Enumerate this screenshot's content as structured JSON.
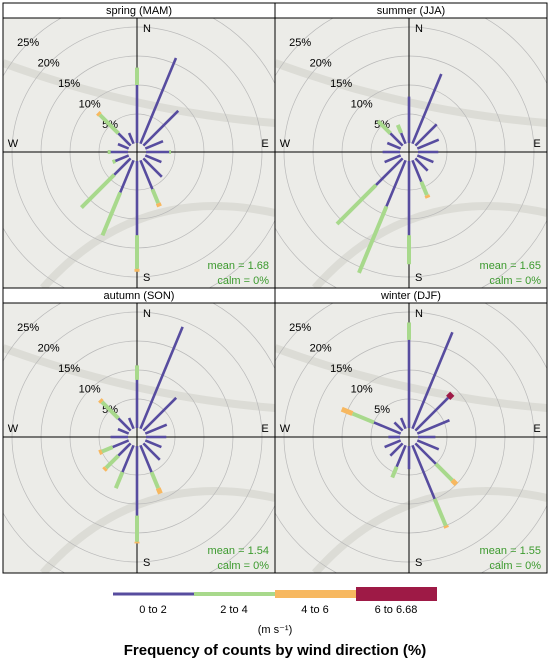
{
  "chart_data": [
    {
      "type": "windrose",
      "title": "spring (MAM)",
      "compass_labels": [
        "N",
        "E",
        "S",
        "W"
      ],
      "rticks": [
        {
          "value": 5,
          "label": "5%"
        },
        {
          "value": 10,
          "label": "10%"
        },
        {
          "value": 15,
          "label": "15%"
        },
        {
          "value": 20,
          "label": "20%"
        },
        {
          "value": 25,
          "label": "25%"
        }
      ],
      "annotations": [
        "mean = 1.68",
        "calm = 0%"
      ],
      "series": [
        {
          "values": [
            10,
            16,
            8.5,
            3.3,
            4,
            3,
            4.5,
            5.4,
            12.8,
            6,
            4,
            2.5,
            3,
            2,
            3,
            2
          ]
        },
        {
          "values": [
            3,
            0,
            0,
            0,
            0.3,
            0,
            0,
            2.6,
            5.8,
            8,
            8,
            0.5,
            0.5,
            0,
            4.5,
            0
          ]
        },
        {
          "values": [
            0,
            0,
            0,
            0,
            0,
            0,
            0,
            0.6,
            0.5,
            0,
            0,
            0,
            0,
            0,
            0.5,
            0
          ]
        },
        {
          "values": [
            0,
            0,
            0,
            0,
            0,
            0,
            0,
            0,
            0,
            0,
            0,
            0,
            0,
            0,
            0,
            0
          ]
        }
      ]
    },
    {
      "type": "windrose",
      "title": "summer (JJA)",
      "compass_labels": [
        "N",
        "E",
        "S",
        "W"
      ],
      "rticks": [
        {
          "value": 5,
          "label": "5%"
        },
        {
          "value": 10,
          "label": "10%"
        },
        {
          "value": 15,
          "label": "15%"
        },
        {
          "value": 20,
          "label": "20%"
        },
        {
          "value": 25,
          "label": "25%"
        }
      ],
      "annotations": [
        "mean = 1.65",
        "calm = 0%"
      ],
      "series": [
        {
          "values": [
            8,
            13,
            5.2,
            4,
            3.5,
            3,
            3,
            4,
            12.8,
            8.6,
            6.5,
            3,
            3,
            2.5,
            3,
            2
          ]
        },
        {
          "values": [
            0,
            0,
            0,
            0,
            0,
            0,
            0,
            2.5,
            5,
            12.4,
            9.5,
            0,
            0,
            0,
            3,
            1.5
          ]
        },
        {
          "values": [
            0,
            0,
            0,
            0,
            0,
            0,
            0,
            0.5,
            0,
            0,
            0,
            0,
            0,
            0,
            0,
            0
          ]
        },
        {
          "values": [
            0,
            0,
            0,
            0,
            0,
            0,
            0,
            0,
            0,
            0,
            0,
            0,
            0,
            0,
            0,
            0
          ]
        }
      ]
    },
    {
      "type": "windrose",
      "title": "autumn (SON)",
      "compass_labels": [
        "N",
        "E",
        "S",
        "W"
      ],
      "rticks": [
        {
          "value": 5,
          "label": "5%"
        },
        {
          "value": 10,
          "label": "10%"
        },
        {
          "value": 15,
          "label": "15%"
        },
        {
          "value": 20,
          "label": "20%"
        },
        {
          "value": 25,
          "label": "25%"
        }
      ],
      "annotations": [
        "mean = 1.54",
        "calm = 0%"
      ],
      "series": [
        {
          "values": [
            8.3,
            19,
            8,
            4,
            3.5,
            3,
            4,
            5,
            12,
            5,
            3,
            3,
            3,
            2,
            3,
            2
          ]
        },
        {
          "values": [
            2.5,
            0,
            0,
            0,
            0,
            0,
            0,
            3,
            4.5,
            3,
            3,
            2,
            0,
            0,
            4,
            0
          ]
        },
        {
          "values": [
            0,
            0,
            0,
            0,
            0,
            0,
            0,
            1,
            0.3,
            0,
            0.5,
            0.5,
            0,
            0,
            0.5,
            0
          ]
        },
        {
          "values": [
            0,
            0,
            0,
            0,
            0,
            0,
            0,
            0,
            0,
            0,
            0,
            0,
            0,
            0,
            0,
            0
          ]
        }
      ]
    },
    {
      "type": "windrose",
      "title": "winter (DJF)",
      "compass_labels": [
        "N",
        "E",
        "S",
        "W"
      ],
      "rticks": [
        {
          "value": 5,
          "label": "5%"
        },
        {
          "value": 10,
          "label": "10%"
        },
        {
          "value": 15,
          "label": "15%"
        },
        {
          "value": 20,
          "label": "20%"
        },
        {
          "value": 25,
          "label": "25%"
        }
      ],
      "annotations": [
        "mean = 1.55",
        "calm = 0%"
      ],
      "series": [
        {
          "values": [
            15.2,
            18,
            8,
            6,
            3,
            4,
            5,
            10,
            4,
            4,
            3,
            3,
            2,
            5,
            2,
            2
          ]
        },
        {
          "values": [
            3,
            0,
            0,
            0,
            0,
            0,
            4,
            5,
            0,
            2,
            0,
            0,
            0,
            4,
            0,
            0
          ]
        },
        {
          "values": [
            0,
            0,
            0,
            0,
            0,
            0,
            1,
            0.4,
            0,
            0,
            0,
            0,
            0,
            2,
            0,
            0
          ]
        },
        {
          "values": [
            0,
            0,
            1,
            0,
            0,
            0,
            0,
            0,
            0,
            0,
            0,
            0,
            0,
            0,
            0,
            0
          ]
        }
      ]
    }
  ],
  "legend": {
    "entries": [
      {
        "name": "0 to 2",
        "color": "#574c9f"
      },
      {
        "name": "2 to 4",
        "color": "#a8d98c"
      },
      {
        "name": "4 to 6",
        "color": "#f7b860"
      },
      {
        "name": "6 to 6.68",
        "color": "#9e1a46"
      }
    ],
    "unit": "(m s⁻¹)",
    "title": "Frequency of counts by wind direction (%)"
  }
}
